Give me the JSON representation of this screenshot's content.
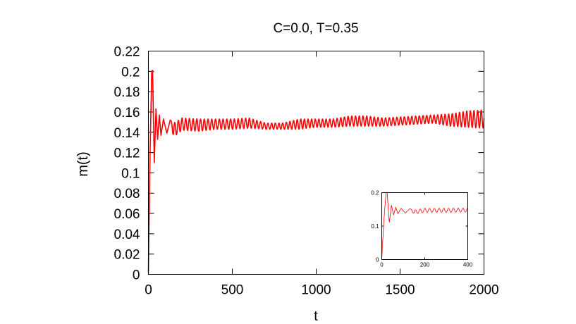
{
  "chart_data": [
    {
      "type": "line",
      "title": "C=0.0, T=0.35",
      "xlabel": "t",
      "ylabel": "m(t)",
      "xlim": [
        0,
        2000
      ],
      "ylim": [
        0,
        0.22
      ],
      "xticks": [
        0,
        500,
        1000,
        1500,
        2000
      ],
      "xtick_labels": [
        "0",
        "500",
        "1000",
        "1500",
        "2000"
      ],
      "yticks": [
        0,
        0.02,
        0.04,
        0.06,
        0.08,
        0.1,
        0.12,
        0.14,
        0.16,
        0.18,
        0.2,
        0.22
      ],
      "ytick_labels": [
        "0",
        "0.02",
        "0.04",
        "0.06",
        "0.08",
        "0.1",
        "0.12",
        "0.14",
        "0.16",
        "0.18",
        "0.2",
        "0.22"
      ],
      "grid": false,
      "series": [
        {
          "color": "#ff0000",
          "x": [
            0,
            10,
            20,
            25,
            35,
            45,
            55,
            65,
            75,
            90,
            110,
            130,
            150,
            200,
            300,
            400,
            500,
            600,
            700,
            800,
            900,
            1000,
            1100,
            1200,
            1300,
            1400,
            1500,
            1600,
            1700,
            1800,
            1900,
            2000
          ],
          "y": [
            0.002,
            0.12,
            0.2,
            0.201,
            0.11,
            0.163,
            0.133,
            0.157,
            0.137,
            0.153,
            0.139,
            0.152,
            0.142,
            0.148,
            0.147,
            0.148,
            0.148,
            0.149,
            0.146,
            0.146,
            0.148,
            0.149,
            0.149,
            0.151,
            0.151,
            0.15,
            0.151,
            0.152,
            0.153,
            0.152,
            0.153,
            0.153
          ],
          "oscillation_amplitude": [
            0,
            0,
            0,
            0,
            0,
            0,
            0,
            0,
            0,
            0,
            0,
            0,
            0.007,
            0.006,
            0.006,
            0.005,
            0.005,
            0.005,
            0.003,
            0.003,
            0.005,
            0.004,
            0.004,
            0.005,
            0.005,
            0.004,
            0.004,
            0.004,
            0.004,
            0.006,
            0.008,
            0.009
          ],
          "oscillation_period": 22
        }
      ]
    },
    {
      "type": "line",
      "title": "",
      "xlabel": "",
      "ylabel": "",
      "xlim": [
        0,
        400
      ],
      "ylim": [
        0,
        0.2
      ],
      "xticks": [
        0,
        200,
        400
      ],
      "xtick_labels": [
        "0",
        "200",
        "400"
      ],
      "yticks": [
        0,
        0.1,
        0.2
      ],
      "ytick_labels": [
        "0",
        "0.1",
        "0.2"
      ],
      "grid": false,
      "series": [
        {
          "color": "#ff0000",
          "x": [
            0,
            10,
            20,
            25,
            35,
            45,
            55,
            65,
            75,
            90,
            110,
            130,
            150,
            200,
            300,
            400
          ],
          "y": [
            0.002,
            0.12,
            0.2,
            0.201,
            0.11,
            0.163,
            0.133,
            0.157,
            0.137,
            0.153,
            0.139,
            0.152,
            0.142,
            0.147,
            0.147,
            0.148
          ],
          "oscillation_amplitude": [
            0,
            0,
            0,
            0,
            0,
            0,
            0,
            0,
            0,
            0,
            0,
            0,
            0.006,
            0.006,
            0.006,
            0.006
          ],
          "oscillation_period": 22
        }
      ]
    }
  ]
}
